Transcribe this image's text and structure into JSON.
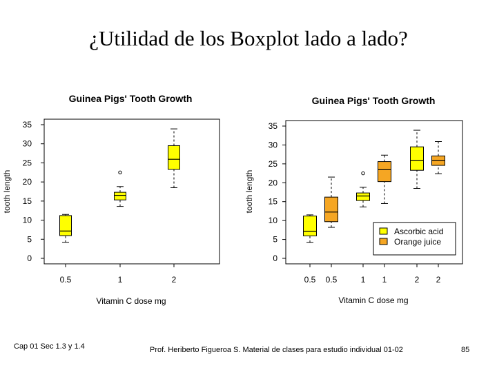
{
  "slide": {
    "title": "¿Utilidad de los Boxplot lado a lado?",
    "footer_left": "Cap 01 Sec 1.3 y 1.4",
    "footer_center": "Prof. Heriberto Figueroa S. Material de clases para estudio individual 01-02",
    "page_number": "85"
  },
  "colors": {
    "vc": "#ffff00",
    "oj": "#f5a623",
    "axis": "#000000"
  },
  "chart_data": [
    {
      "type": "boxplot",
      "title": "Guinea Pigs' Tooth Growth",
      "xlabel": "Vitamin C dose mg",
      "ylabel": "tooth length",
      "ylim": [
        0,
        35
      ],
      "yticks": [
        "0",
        "5",
        "10",
        "15",
        "20",
        "25",
        "30",
        "35"
      ],
      "categories": [
        "0.5",
        "1",
        "2"
      ],
      "boxes": [
        {
          "label": "0.5",
          "group": "Ascorbic acid",
          "min": 4.2,
          "q1": 5.95,
          "median": 7.15,
          "q3": 11.2,
          "max": 11.5,
          "outliers": []
        },
        {
          "label": "1",
          "group": "Ascorbic acid",
          "min": 13.6,
          "q1": 15.3,
          "median": 16.5,
          "q3": 17.3,
          "max": 18.8,
          "outliers": [
            22.5
          ]
        },
        {
          "label": "2",
          "group": "Ascorbic acid",
          "min": 18.5,
          "q1": 23.3,
          "median": 25.95,
          "q3": 29.5,
          "max": 33.9,
          "outliers": []
        }
      ],
      "legend": []
    },
    {
      "type": "boxplot",
      "title": "Guinea Pigs' Tooth Growth",
      "xlabel": "Vitamin C dose mg",
      "ylabel": "tooth length",
      "ylim": [
        0,
        35
      ],
      "yticks": [
        "0",
        "5",
        "10",
        "15",
        "20",
        "25",
        "30",
        "35"
      ],
      "categories": [
        "0.5",
        "0.5",
        "1",
        "1",
        "2",
        "2"
      ],
      "boxes": [
        {
          "label": "0.5",
          "group": "Ascorbic acid",
          "min": 4.2,
          "q1": 5.95,
          "median": 7.15,
          "q3": 11.2,
          "max": 11.5,
          "outliers": []
        },
        {
          "label": "0.5",
          "group": "Orange juice",
          "min": 8.2,
          "q1": 9.7,
          "median": 12.25,
          "q3": 16.2,
          "max": 21.5,
          "outliers": []
        },
        {
          "label": "1",
          "group": "Ascorbic acid",
          "min": 13.6,
          "q1": 15.3,
          "median": 16.5,
          "q3": 17.3,
          "max": 18.8,
          "outliers": [
            22.5
          ]
        },
        {
          "label": "1",
          "group": "Orange juice",
          "min": 14.5,
          "q1": 20.3,
          "median": 23.45,
          "q3": 25.6,
          "max": 27.3,
          "outliers": []
        },
        {
          "label": "2",
          "group": "Ascorbic acid",
          "min": 18.5,
          "q1": 23.3,
          "median": 25.95,
          "q3": 29.5,
          "max": 33.9,
          "outliers": []
        },
        {
          "label": "2",
          "group": "Orange juice",
          "min": 22.4,
          "q1": 24.6,
          "median": 25.95,
          "q3": 27.1,
          "max": 30.9,
          "outliers": []
        }
      ],
      "legend": [
        {
          "label": "Ascorbic acid",
          "group": "Ascorbic acid"
        },
        {
          "label": "Orange juice",
          "group": "Orange juice"
        }
      ]
    }
  ]
}
